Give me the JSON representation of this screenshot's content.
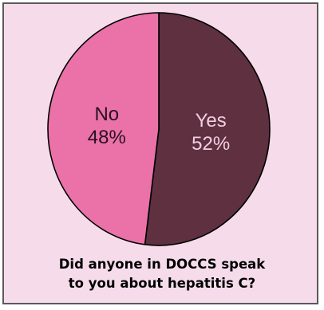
{
  "chart_data": {
    "type": "pie",
    "slices": [
      {
        "label": "Yes",
        "value": 52,
        "value_label": "52%",
        "color": "#5e3040",
        "text_color": "#f2cfe0"
      },
      {
        "label": "No",
        "value": 48,
        "value_label": "48%",
        "color": "#ea72a9",
        "text_color": "#2a1020"
      }
    ],
    "background": "#f6dcea",
    "outline": "#000000"
  },
  "caption": {
    "line1": "Did anyone in DOCCS speak",
    "line2": "to you about hepatitis C?"
  }
}
